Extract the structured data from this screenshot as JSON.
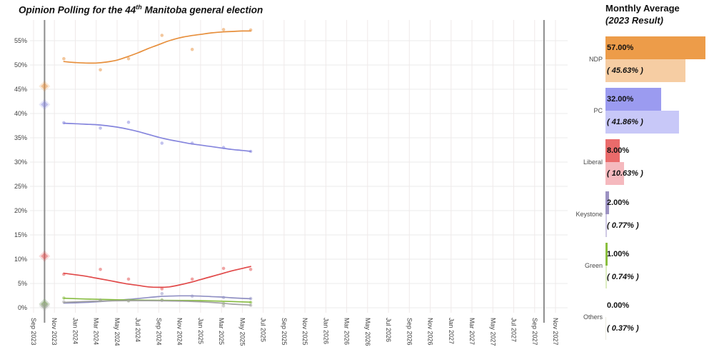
{
  "title": {
    "prefix": "Opinion Polling for the 44",
    "sup": "th",
    "suffix": " Manitoba general election"
  },
  "panel": {
    "title": "Monthly Average",
    "subtitle": "(2023 Result)",
    "rows": [
      {
        "party": "NDP",
        "avg_label": "57.00%",
        "result_label": "( 45.63% )",
        "avg_pct": 57.0,
        "result_pct": 45.63,
        "color_solid": "#ED9C49",
        "color_light": "#F6CDA3"
      },
      {
        "party": "PC",
        "avg_label": "32.00%",
        "result_label": "( 41.86% )",
        "avg_pct": 32.0,
        "result_pct": 41.86,
        "color_solid": "#9B9BF0",
        "color_light": "#C8C8F8"
      },
      {
        "party": "Liberal",
        "avg_label": "8.00%",
        "result_label": "( 10.63% )",
        "avg_pct": 8.0,
        "result_pct": 10.63,
        "color_solid": "#EA6B6B",
        "color_light": "#F5B9BE"
      },
      {
        "party": "Keystone",
        "avg_label": "2.00%",
        "result_label": "( 0.77% )",
        "avg_pct": 2.0,
        "result_pct": 0.77,
        "color_solid": "#9C92C2",
        "color_light": "#CFC9E5"
      },
      {
        "party": "Green",
        "avg_label": "1.00%",
        "result_label": "( 0.74% )",
        "avg_pct": 1.0,
        "result_pct": 0.74,
        "color_solid": "#8ABF3E",
        "color_light": "#DCEDC1"
      },
      {
        "party": "Others",
        "avg_label": "0.00%",
        "result_label": "( 0.37% )",
        "avg_pct": 0.0,
        "result_pct": 0.37,
        "color_solid": "#BEBEB4",
        "color_light": "#EAEADF"
      }
    ]
  },
  "chart_data": {
    "type": "line",
    "title": "Opinion Polling for the 44th Manitoba general election",
    "xlabel": "",
    "ylabel": "",
    "x_unit": "months since Sep 2023",
    "ylim": [
      0,
      59
    ],
    "grid": true,
    "y_ticks": [
      "0%",
      "5%",
      "10%",
      "15%",
      "20%",
      "25%",
      "30%",
      "35%",
      "40%",
      "45%",
      "50%",
      "55%"
    ],
    "y_tick_values": [
      0,
      5,
      10,
      15,
      20,
      25,
      30,
      35,
      40,
      45,
      50,
      55
    ],
    "x_ticks": [
      "Sep 2023",
      "Nov 2023",
      "Jan 2024",
      "Mar 2024",
      "May 2024",
      "Jul 2024",
      "Sep 2024",
      "Nov 2024",
      "Jan 2025",
      "Mar 2025",
      "May 2025",
      "Jul 2025",
      "Sep 2025",
      "Nov 2025",
      "Jan 2026",
      "Mar 2026",
      "May 2026",
      "Jul 2026",
      "Sep 2026",
      "Nov 2026",
      "Jan 2027",
      "Mar 2027",
      "May 2027",
      "Jul 2027",
      "Sep 2027",
      "Nov 2027"
    ],
    "x_tick_months": [
      0,
      2,
      4,
      6,
      8,
      10,
      12,
      14,
      16,
      18,
      20,
      22,
      24,
      26,
      28,
      30,
      32,
      34,
      36,
      38,
      40,
      42,
      44,
      46,
      48,
      50
    ],
    "election_marker_months": [
      1.05,
      48.9
    ],
    "series": [
      {
        "name": "NDP",
        "color": "#E78F3C",
        "result_2023": 45.63,
        "trend": [
          [
            2.9,
            50.7
          ],
          [
            4,
            50.5
          ],
          [
            5,
            50.4
          ],
          [
            6,
            50.4
          ],
          [
            7,
            50.6
          ],
          [
            8,
            51.0
          ],
          [
            9,
            51.7
          ],
          [
            10,
            52.5
          ],
          [
            11,
            53.4
          ],
          [
            12,
            54.2
          ],
          [
            13,
            55.0
          ],
          [
            14,
            55.6
          ],
          [
            15,
            56.0
          ],
          [
            16,
            56.3
          ],
          [
            17,
            56.6
          ],
          [
            18,
            56.8
          ],
          [
            19,
            56.9
          ],
          [
            20,
            57.0
          ],
          [
            20.8,
            57.0
          ]
        ],
        "polls": [
          [
            2.9,
            51.3
          ],
          [
            6.4,
            49.0
          ],
          [
            9.1,
            51.3
          ],
          [
            12.3,
            56.1
          ],
          [
            15.2,
            53.2
          ],
          [
            18.2,
            57.3
          ],
          [
            20.8,
            57.2
          ]
        ]
      },
      {
        "name": "PC",
        "color": "#8585DD",
        "result_2023": 41.86,
        "trend": [
          [
            2.9,
            38.0
          ],
          [
            4,
            37.9
          ],
          [
            5,
            37.8
          ],
          [
            6,
            37.7
          ],
          [
            7,
            37.5
          ],
          [
            8,
            37.2
          ],
          [
            9,
            36.8
          ],
          [
            10,
            36.3
          ],
          [
            11,
            35.7
          ],
          [
            12,
            35.1
          ],
          [
            13,
            34.6
          ],
          [
            14,
            34.2
          ],
          [
            15,
            33.8
          ],
          [
            16,
            33.5
          ],
          [
            17,
            33.2
          ],
          [
            18,
            32.9
          ],
          [
            19,
            32.6
          ],
          [
            20,
            32.4
          ],
          [
            20.8,
            32.2
          ]
        ],
        "polls": [
          [
            2.9,
            38.1
          ],
          [
            6.4,
            37.0
          ],
          [
            9.1,
            38.2
          ],
          [
            12.3,
            33.9
          ],
          [
            15.2,
            33.9
          ],
          [
            18.2,
            33.0
          ],
          [
            20.8,
            32.2
          ]
        ]
      },
      {
        "name": "Liberal",
        "color": "#E14949",
        "result_2023": 10.63,
        "trend": [
          [
            2.9,
            7.1
          ],
          [
            4,
            6.8
          ],
          [
            5,
            6.5
          ],
          [
            6,
            6.1
          ],
          [
            7,
            5.7
          ],
          [
            8,
            5.3
          ],
          [
            9,
            4.9
          ],
          [
            10,
            4.6
          ],
          [
            11,
            4.3
          ],
          [
            12,
            4.2
          ],
          [
            13,
            4.3
          ],
          [
            14,
            4.7
          ],
          [
            15,
            5.2
          ],
          [
            16,
            5.8
          ],
          [
            17,
            6.4
          ],
          [
            18,
            7.0
          ],
          [
            19,
            7.6
          ],
          [
            20,
            8.1
          ],
          [
            20.8,
            8.5
          ]
        ],
        "polls": [
          [
            2.9,
            6.9
          ],
          [
            6.4,
            7.9
          ],
          [
            9.1,
            5.9
          ],
          [
            12.3,
            3.9
          ],
          [
            15.2,
            5.9
          ],
          [
            18.2,
            8.1
          ],
          [
            20.8,
            7.9
          ]
        ]
      },
      {
        "name": "Keystone",
        "color": "#9191C4",
        "result_2023": 0.77,
        "trend": [
          [
            2.9,
            0.95
          ],
          [
            5,
            1.1
          ],
          [
            7,
            1.35
          ],
          [
            9,
            1.7
          ],
          [
            11,
            2.1
          ],
          [
            12,
            2.3
          ],
          [
            13,
            2.4
          ],
          [
            14,
            2.45
          ],
          [
            15,
            2.45
          ],
          [
            16,
            2.4
          ],
          [
            17,
            2.3
          ],
          [
            18,
            2.2
          ],
          [
            19,
            2.05
          ],
          [
            20.8,
            1.85
          ]
        ],
        "polls": [
          [
            12.3,
            2.9
          ],
          [
            15.2,
            2.4
          ],
          [
            18.2,
            2.1
          ],
          [
            20.8,
            1.9
          ]
        ]
      },
      {
        "name": "Green",
        "color": "#87BC41",
        "result_2023": 0.74,
        "trend": [
          [
            2.9,
            1.95
          ],
          [
            5,
            1.8
          ],
          [
            8,
            1.65
          ],
          [
            11,
            1.55
          ],
          [
            14,
            1.5
          ],
          [
            16,
            1.45
          ],
          [
            18,
            1.35
          ],
          [
            20.8,
            1.15
          ]
        ],
        "polls": [
          [
            2.9,
            2.0
          ],
          [
            6.4,
            1.5
          ],
          [
            9.1,
            1.5
          ],
          [
            12.3,
            1.6
          ],
          [
            18.2,
            0.9
          ],
          [
            20.8,
            1.1
          ]
        ]
      },
      {
        "name": "Others",
        "color": "#A3A3A3",
        "result_2023": 0.37,
        "trend": [
          [
            2.9,
            1.1
          ],
          [
            5,
            1.3
          ],
          [
            7,
            1.4
          ],
          [
            9,
            1.45
          ],
          [
            11,
            1.45
          ],
          [
            13,
            1.4
          ],
          [
            15,
            1.3
          ],
          [
            17,
            1.1
          ],
          [
            18,
            0.95
          ],
          [
            19,
            0.75
          ],
          [
            20.8,
            0.55
          ]
        ],
        "polls": [
          [
            2.9,
            1.2
          ],
          [
            6.4,
            1.6
          ],
          [
            9.1,
            1.4
          ],
          [
            12.3,
            1.5
          ],
          [
            18.2,
            0.4
          ],
          [
            20.8,
            0.5
          ]
        ]
      }
    ],
    "legend_position": "none"
  },
  "colors": {
    "gridline_h": "#ebebeb",
    "gridline_v": "#efe9e9",
    "election_line": "#8c8c8c",
    "tick_text": "#404040"
  }
}
